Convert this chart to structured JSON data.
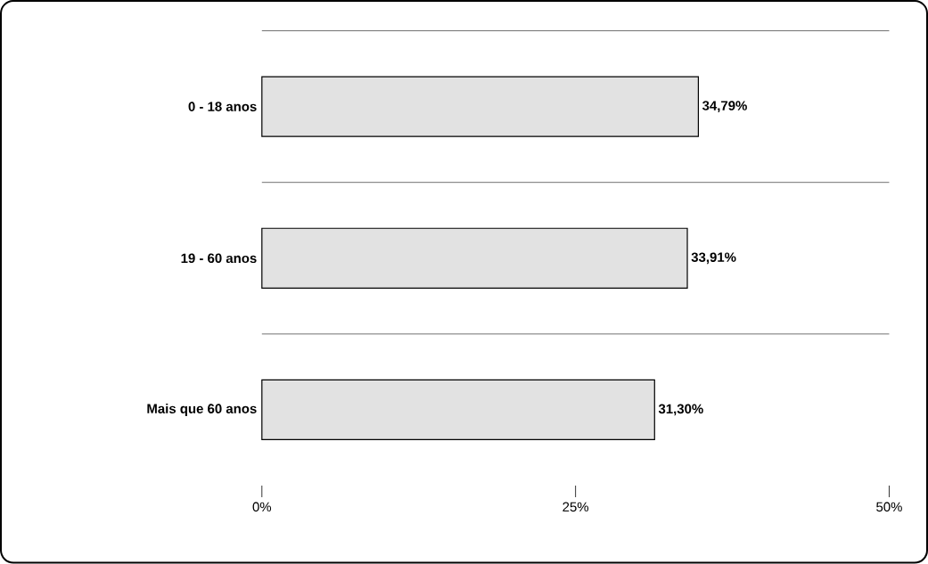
{
  "chart_data": {
    "type": "bar",
    "orientation": "horizontal",
    "categories": [
      "0 - 18 anos",
      "19 - 60 anos",
      "Mais que 60 anos"
    ],
    "values": [
      34.79,
      33.91,
      31.3
    ],
    "value_labels": [
      "34,79%",
      "33,91%",
      "31,30%"
    ],
    "color": "#e2e2e2",
    "xlim": [
      0,
      50
    ],
    "xticks": [
      {
        "value": 0,
        "label": "0%"
      },
      {
        "value": 25,
        "label": "25%"
      },
      {
        "value": 50,
        "label": "50%"
      }
    ],
    "grid": "y"
  }
}
